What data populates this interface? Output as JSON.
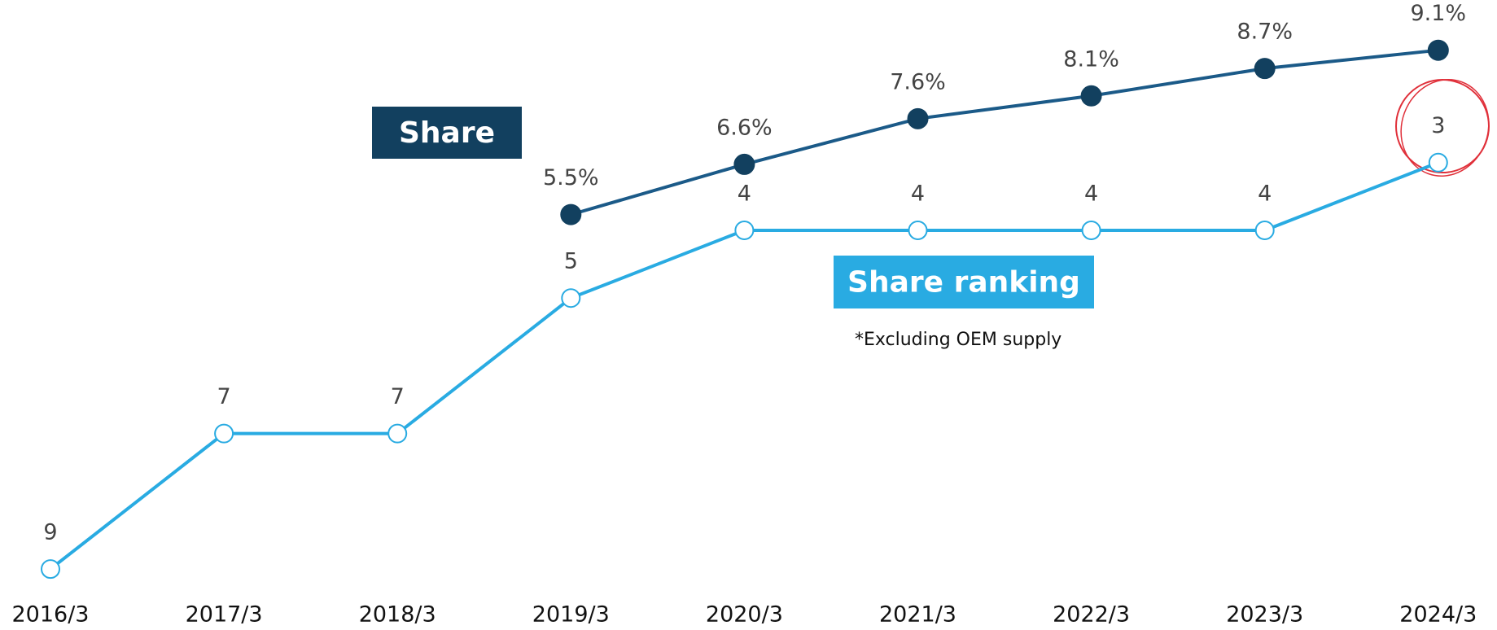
{
  "chart_data": {
    "type": "line",
    "categories": [
      "2016/3",
      "2017/3",
      "2018/3",
      "2019/3",
      "2020/3",
      "2021/3",
      "2022/3",
      "2023/3",
      "2024/3"
    ],
    "ylim": [
      9.9,
      0.6
    ],
    "y2lim": [
      -3.6,
      10.2
    ],
    "series": [
      {
        "name": "Share",
        "color": "#1b5a88",
        "marker_color": "#12405f",
        "axis": "y2",
        "values": [
          null,
          null,
          null,
          5.5,
          6.6,
          7.6,
          8.1,
          8.7,
          9.1
        ],
        "value_labels": [
          null,
          null,
          null,
          "5.5%",
          "6.6%",
          "7.6%",
          "8.1%",
          "8.7%",
          "9.1%"
        ]
      },
      {
        "name": "Share ranking",
        "color": "#29abe2",
        "marker_color": "#ffffff",
        "axis": "y",
        "values": [
          9,
          7,
          7,
          5,
          4,
          4,
          4,
          4,
          3
        ]
      }
    ],
    "note": "*Excluding OEM supply"
  }
}
